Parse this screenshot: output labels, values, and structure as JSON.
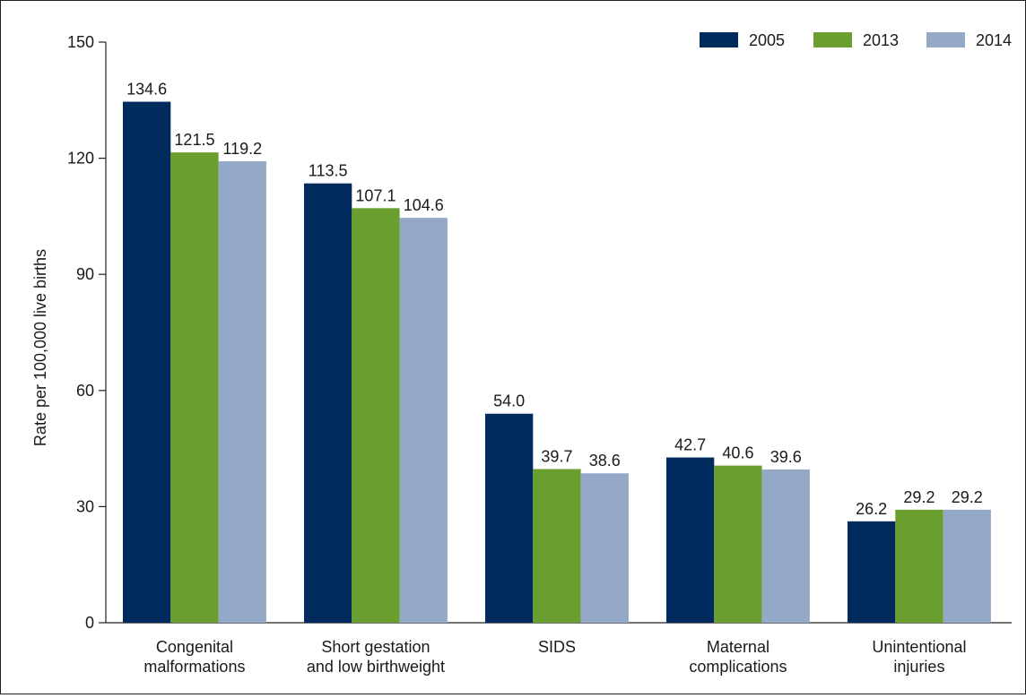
{
  "chart_data": {
    "type": "bar",
    "ylabel": "Rate per 100,000 live births",
    "xlabel": "",
    "ylim": [
      0,
      150
    ],
    "yticks": [
      0,
      30,
      60,
      90,
      120,
      150
    ],
    "ytick_labels": [
      "0",
      "30",
      "60",
      "90",
      "120",
      "150"
    ],
    "categories": [
      [
        "Congenital",
        "malformations"
      ],
      [
        "Short gestation",
        "and low birthweight"
      ],
      [
        "SIDS"
      ],
      [
        "Maternal",
        "complications"
      ],
      [
        "Unintentional",
        "injuries"
      ]
    ],
    "series": [
      {
        "name": "2005",
        "color": "#002b5c",
        "values": [
          134.6,
          113.5,
          54.0,
          42.7,
          26.2
        ],
        "labels": [
          "134.6",
          "113.5",
          "54.0",
          "42.7",
          "26.2"
        ]
      },
      {
        "name": "2013",
        "color": "#6a9f2f",
        "values": [
          121.5,
          107.1,
          39.7,
          40.6,
          29.2
        ],
        "labels": [
          "121.5",
          "107.1",
          "39.7",
          "40.6",
          "29.2"
        ]
      },
      {
        "name": "2014",
        "color": "#94a8c8",
        "values": [
          119.2,
          104.6,
          38.6,
          39.6,
          29.2
        ],
        "labels": [
          "119.2",
          "104.6",
          "38.6",
          "39.6",
          "29.2"
        ]
      }
    ],
    "legend_position": "top-right",
    "grid": false
  }
}
